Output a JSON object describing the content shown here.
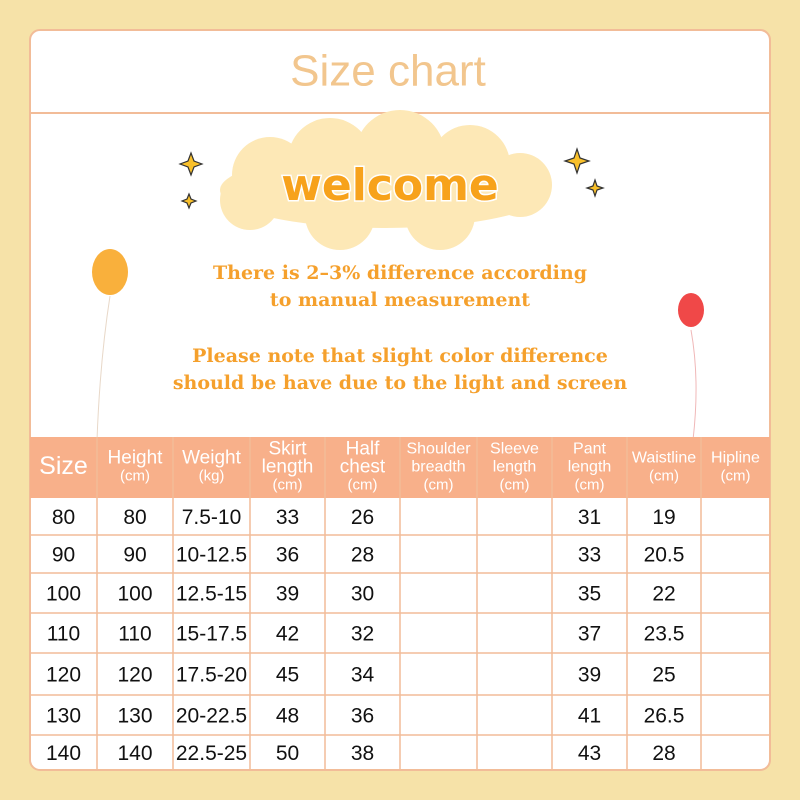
{
  "header": {
    "title": "Size chart"
  },
  "banner": {
    "text": "welcome"
  },
  "notes": [
    [
      "There is 2–3% difference according",
      "to manual measurement"
    ],
    [
      "Please note that slight color difference",
      "should be have due to the light and screen"
    ]
  ],
  "table": {
    "header": [
      [
        "Size"
      ],
      [
        "Height",
        "(cm)"
      ],
      [
        "Weight",
        "(kg)"
      ],
      [
        "Skirt",
        "length",
        "(cm)"
      ],
      [
        "Half",
        "chest",
        "(cm)"
      ],
      [
        "Shoulder",
        "breadth",
        "(cm)"
      ],
      [
        "Sleeve",
        "length",
        "(cm)"
      ],
      [
        "Pant",
        "length",
        "(cm)"
      ],
      [
        "Waistline",
        "(cm)"
      ],
      [
        "Hipline",
        "(cm)"
      ]
    ],
    "rows": [
      [
        80,
        80,
        "7.5-10",
        33,
        26,
        null,
        null,
        31,
        19,
        null
      ],
      [
        90,
        90,
        "10-12.5",
        36,
        28,
        null,
        null,
        33,
        20.5,
        null
      ],
      [
        100,
        100,
        "12.5-15",
        39,
        30,
        null,
        null,
        35,
        22,
        null
      ],
      [
        110,
        110,
        "15-17.5",
        42,
        32,
        null,
        null,
        37,
        23.5,
        null
      ],
      [
        120,
        120,
        "17.5-20",
        45,
        34,
        null,
        null,
        39,
        25,
        null
      ],
      [
        130,
        130,
        "20-22.5",
        48,
        36,
        null,
        null,
        41,
        26.5,
        null
      ],
      [
        140,
        140,
        "22.5-25",
        50,
        38,
        null,
        null,
        43,
        28,
        null
      ]
    ]
  }
}
